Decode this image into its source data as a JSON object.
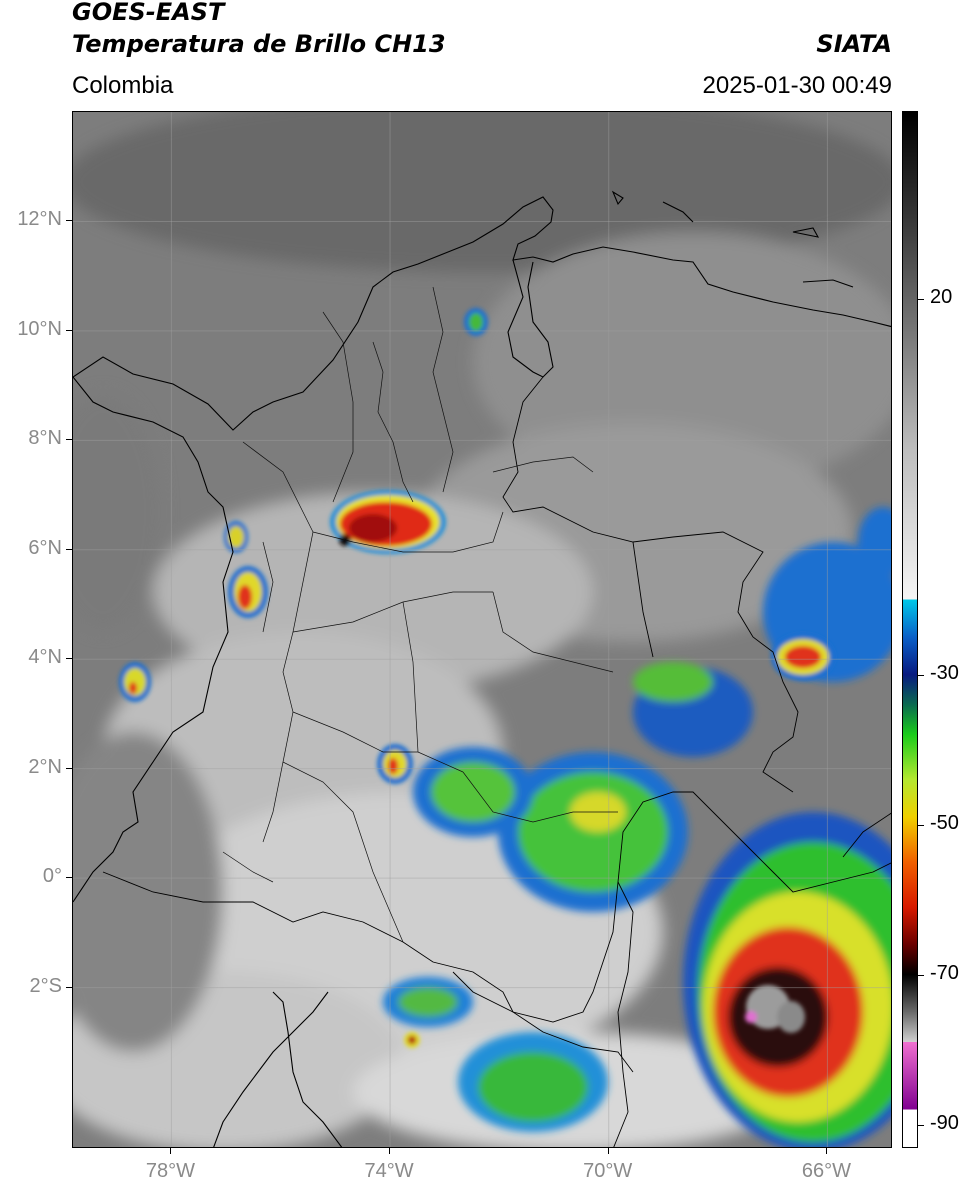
{
  "header": {
    "satellite": "GOES-EAST",
    "product": "Temperatura de Brillo CH13",
    "region": "Colombia",
    "agency": "SIATA",
    "datetime": "2025-01-30 00:49"
  },
  "map": {
    "lat_labels": [
      {
        "text": "12°N",
        "value": 12
      },
      {
        "text": "10°N",
        "value": 10
      },
      {
        "text": "8°N",
        "value": 8
      },
      {
        "text": "6°N",
        "value": 6
      },
      {
        "text": "4°N",
        "value": 4
      },
      {
        "text": "2°N",
        "value": 2
      },
      {
        "text": "0°",
        "value": 0
      },
      {
        "text": "2°S",
        "value": -2
      }
    ],
    "lon_labels": [
      {
        "text": "78°W",
        "value": -78
      },
      {
        "text": "74°W",
        "value": -74
      },
      {
        "text": "70°W",
        "value": -70
      },
      {
        "text": "66°W",
        "value": -66
      }
    ],
    "extent": {
      "lon_min": -79.8,
      "lon_max": -64.8,
      "lat_min": -4.95,
      "lat_max": 14.0
    }
  },
  "colorbar": {
    "ticks": [
      {
        "text": "20",
        "value": 20
      },
      {
        "text": "-30",
        "value": -30
      },
      {
        "text": "-50",
        "value": -50
      },
      {
        "text": "-70",
        "value": -70
      },
      {
        "text": "-90",
        "value": -90
      }
    ],
    "range": [
      -93,
      45
    ]
  }
}
